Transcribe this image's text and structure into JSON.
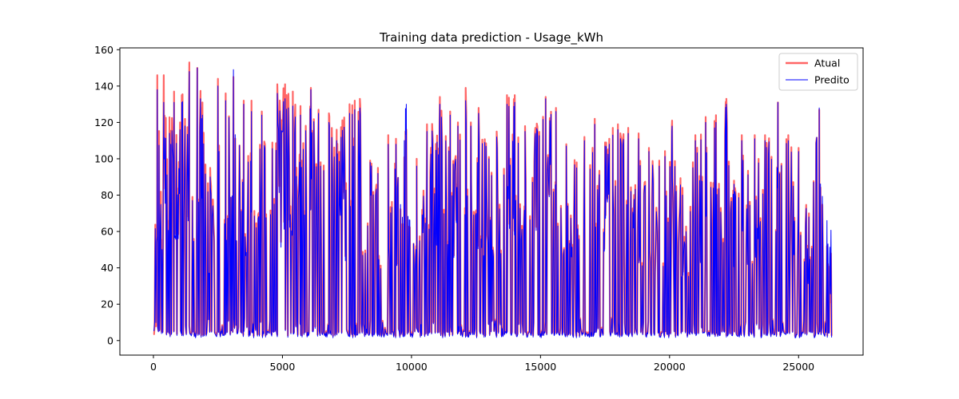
{
  "chart_data": {
    "type": "line",
    "title": "Training data prediction - Usage_kWh",
    "xlabel": "",
    "ylabel": "",
    "xlim": [
      -1300,
      27500
    ],
    "ylim": [
      -8,
      161
    ],
    "x_ticks": [
      0,
      5000,
      10000,
      15000,
      20000,
      25000
    ],
    "x_tick_labels": [
      "0",
      "5000",
      "10000",
      "15000",
      "20000",
      "25000"
    ],
    "y_ticks": [
      0,
      20,
      40,
      60,
      80,
      100,
      120,
      140,
      160
    ],
    "y_tick_labels": [
      "0",
      "20",
      "40",
      "60",
      "80",
      "100",
      "120",
      "140",
      "160"
    ],
    "grid": false,
    "legend_position": "top-right",
    "x_range": [
      0,
      26280
    ],
    "series": [
      {
        "name": "Atual",
        "color": "#ff6666",
        "peaks": [
          [
            150,
            146
          ],
          [
            400,
            146
          ],
          [
            800,
            137
          ],
          [
            1100,
            135
          ],
          [
            1390,
            153
          ],
          [
            1700,
            150
          ],
          [
            1900,
            131
          ],
          [
            2200,
            95
          ],
          [
            2500,
            144
          ],
          [
            2800,
            136
          ],
          [
            3100,
            145
          ],
          [
            3500,
            132
          ],
          [
            3800,
            132
          ],
          [
            4200,
            126
          ],
          [
            4800,
            141
          ],
          [
            5100,
            141
          ],
          [
            5400,
            137
          ],
          [
            5700,
            129
          ],
          [
            6100,
            139
          ],
          [
            6400,
            127
          ],
          [
            6800,
            125
          ],
          [
            7100,
            116
          ],
          [
            7600,
            130
          ],
          [
            7800,
            132
          ],
          [
            8000,
            133
          ],
          [
            8400,
            99
          ],
          [
            8700,
            95
          ],
          [
            9100,
            113
          ],
          [
            9400,
            111
          ],
          [
            9800,
            116
          ],
          [
            10200,
            100
          ],
          [
            10600,
            119
          ],
          [
            11100,
            134
          ],
          [
            11500,
            126
          ],
          [
            11800,
            120
          ],
          [
            12100,
            139
          ],
          [
            12300,
            120
          ],
          [
            12600,
            128
          ],
          [
            13000,
            101
          ],
          [
            13300,
            115
          ],
          [
            13700,
            135
          ],
          [
            14000,
            135
          ],
          [
            14400,
            118
          ],
          [
            14800,
            117
          ],
          [
            15200,
            134
          ],
          [
            15600,
            128
          ],
          [
            16000,
            108
          ],
          [
            16400,
            98
          ],
          [
            16700,
            112
          ],
          [
            17100,
            122
          ],
          [
            17500,
            109
          ],
          [
            17800,
            117
          ],
          [
            18000,
            119
          ],
          [
            18400,
            117
          ],
          [
            18800,
            114
          ],
          [
            19200,
            106
          ],
          [
            19600,
            99
          ],
          [
            20100,
            121
          ],
          [
            20500,
            84
          ],
          [
            21000,
            113
          ],
          [
            21400,
            123
          ],
          [
            21800,
            124
          ],
          [
            22200,
            133
          ],
          [
            22500,
            88
          ],
          [
            22800,
            113
          ],
          [
            23300,
            113
          ],
          [
            23700,
            113
          ],
          [
            24200,
            131
          ],
          [
            24600,
            113
          ],
          [
            25000,
            106
          ],
          [
            25400,
            70
          ],
          [
            25800,
            127
          ],
          [
            26100,
            52
          ]
        ]
      },
      {
        "name": "Predito",
        "color": "#0000ff",
        "peaks": [
          [
            150,
            138
          ],
          [
            400,
            131
          ],
          [
            800,
            131
          ],
          [
            1100,
            131
          ],
          [
            1390,
            148
          ],
          [
            1700,
            150
          ],
          [
            1900,
            124
          ],
          [
            2200,
            90
          ],
          [
            2500,
            140
          ],
          [
            2800,
            132
          ],
          [
            3100,
            149
          ],
          [
            3500,
            130
          ],
          [
            3800,
            126
          ],
          [
            4200,
            124
          ],
          [
            4800,
            136
          ],
          [
            5100,
            133
          ],
          [
            5400,
            129
          ],
          [
            5700,
            124
          ],
          [
            6100,
            138
          ],
          [
            6400,
            125
          ],
          [
            6800,
            120
          ],
          [
            7100,
            110
          ],
          [
            7600,
            125
          ],
          [
            7800,
            127
          ],
          [
            8000,
            128
          ],
          [
            8400,
            98
          ],
          [
            8700,
            92
          ],
          [
            9100,
            108
          ],
          [
            9400,
            108
          ],
          [
            9800,
            130
          ],
          [
            10200,
            96
          ],
          [
            10600,
            115
          ],
          [
            11100,
            130
          ],
          [
            11500,
            124
          ],
          [
            11800,
            118
          ],
          [
            12100,
            132
          ],
          [
            12300,
            118
          ],
          [
            12600,
            125
          ],
          [
            13000,
            100
          ],
          [
            13300,
            112
          ],
          [
            13700,
            130
          ],
          [
            14000,
            131
          ],
          [
            14400,
            115
          ],
          [
            14800,
            114
          ],
          [
            15200,
            133
          ],
          [
            15600,
            126
          ],
          [
            16000,
            107
          ],
          [
            16400,
            95
          ],
          [
            16700,
            110
          ],
          [
            17100,
            119
          ],
          [
            17500,
            107
          ],
          [
            17800,
            113
          ],
          [
            18000,
            116
          ],
          [
            18400,
            114
          ],
          [
            18800,
            111
          ],
          [
            19200,
            104
          ],
          [
            19600,
            96
          ],
          [
            20100,
            118
          ],
          [
            20500,
            80
          ],
          [
            21000,
            110
          ],
          [
            21400,
            120
          ],
          [
            21800,
            120
          ],
          [
            22200,
            130
          ],
          [
            22500,
            86
          ],
          [
            22800,
            110
          ],
          [
            23300,
            111
          ],
          [
            23700,
            110
          ],
          [
            24200,
            131
          ],
          [
            24600,
            110
          ],
          [
            25000,
            104
          ],
          [
            25400,
            68
          ],
          [
            25800,
            128
          ],
          [
            26100,
            66
          ]
        ]
      }
    ]
  }
}
